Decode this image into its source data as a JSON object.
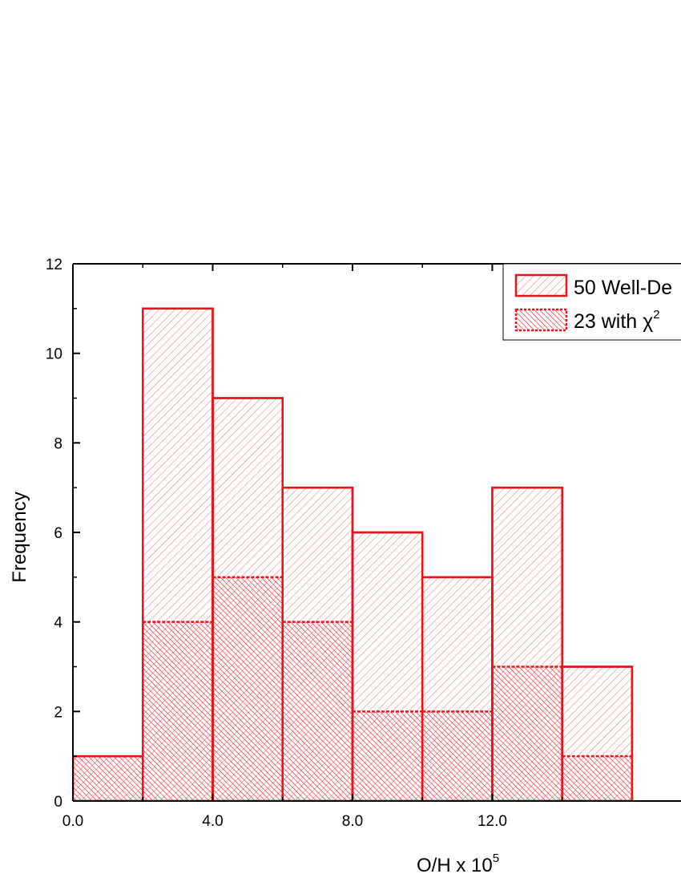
{
  "chart_data": {
    "type": "bar",
    "xlabel": "O/H x 10",
    "xlabel_superscript": "5",
    "ylabel": "Frequency",
    "xlim": [
      0,
      17.4
    ],
    "ylim": [
      0,
      12
    ],
    "xticks": [
      {
        "value": 0,
        "label": "0.0"
      },
      {
        "value": 4,
        "label": "4.0"
      },
      {
        "value": 8,
        "label": "8.0"
      },
      {
        "value": 12,
        "label": "12.0"
      }
    ],
    "yticks": [
      0,
      2,
      4,
      6,
      8,
      10,
      12
    ],
    "bin_edges": [
      0,
      2,
      4,
      6,
      8,
      10,
      12,
      14,
      16
    ],
    "series": [
      {
        "name": "50 Well-De",
        "values": [
          1,
          11,
          9,
          7,
          6,
          5,
          7,
          3
        ]
      },
      {
        "name": "23 with χ",
        "values": [
          1,
          4,
          5,
          4,
          2,
          2,
          3,
          1
        ]
      }
    ],
    "legend_superscript": "2",
    "legend_position": "top-right",
    "grid": false,
    "colors": {
      "outline": "#e8141b",
      "light_hatch": "#f4a0a0",
      "dense_hatch": "#e8141b"
    }
  }
}
